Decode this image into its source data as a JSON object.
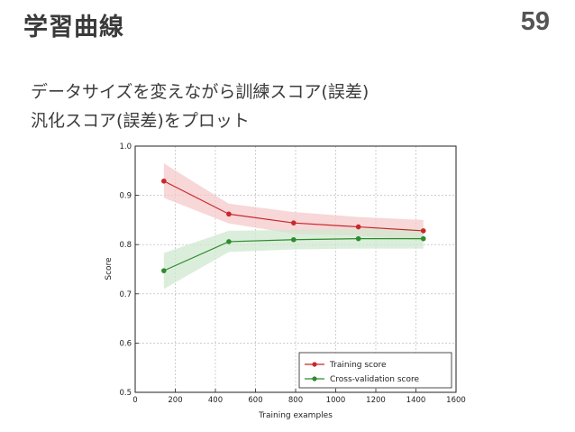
{
  "slide": {
    "title": "学習曲線",
    "page_number": "59",
    "lines": [
      "データサイズを変えながら訓練スコア(誤差)",
      "汎化スコア(誤差)をプロット"
    ]
  },
  "colors": {
    "training": "#c8282a",
    "training_band": "#f4c9c9",
    "validation": "#2e8b2e",
    "validation_band": "#cfe8cf",
    "grid": "#b0b0b0"
  },
  "chart_data": {
    "type": "line",
    "title": "",
    "xlabel": "Training examples",
    "ylabel": "Score",
    "xlim": [
      0,
      1600
    ],
    "ylim": [
      0.5,
      1.0
    ],
    "x_ticks": [
      0,
      200,
      400,
      600,
      800,
      1000,
      1200,
      1400,
      1600
    ],
    "y_ticks": [
      0.5,
      0.6,
      0.7,
      0.8,
      0.9,
      1.0
    ],
    "y_tick_labels": [
      "0.5",
      "0.6",
      "0.7",
      "0.8",
      "0.9",
      "1.0"
    ],
    "grid": true,
    "legend_position": "bottom-right",
    "x": [
      143,
      467,
      790,
      1113,
      1437
    ],
    "series": [
      {
        "name": "Training score",
        "values": [
          0.929,
          0.862,
          0.844,
          0.836,
          0.828
        ],
        "band_low": [
          0.895,
          0.843,
          0.822,
          0.818,
          0.808
        ],
        "band_high": [
          0.965,
          0.883,
          0.866,
          0.856,
          0.85
        ]
      },
      {
        "name": "Cross-validation score",
        "values": [
          0.747,
          0.806,
          0.81,
          0.812,
          0.812
        ],
        "band_low": [
          0.71,
          0.785,
          0.79,
          0.792,
          0.792
        ],
        "band_high": [
          0.783,
          0.828,
          0.83,
          0.832,
          0.832
        ]
      }
    ]
  }
}
